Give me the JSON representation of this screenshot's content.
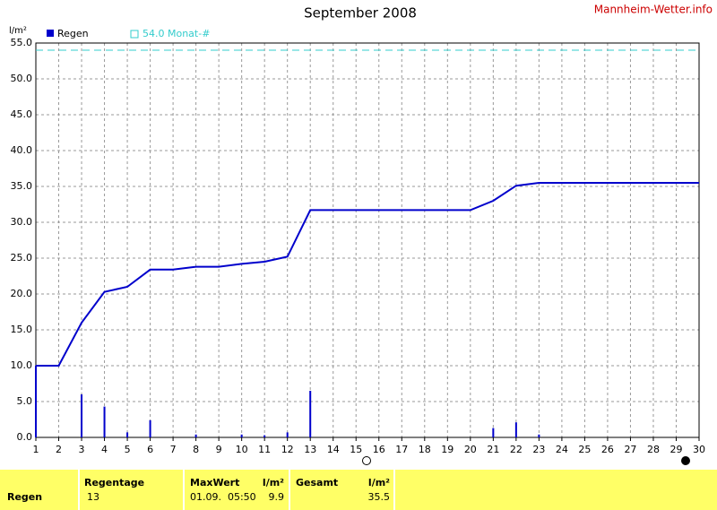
{
  "chart_data": {
    "type": "bar-line",
    "title": "September 2008",
    "brand": "Mannheim-Wetter.info",
    "ylabel": "l/m²",
    "x": [
      1,
      2,
      3,
      4,
      5,
      6,
      7,
      8,
      9,
      10,
      11,
      12,
      13,
      14,
      15,
      16,
      17,
      18,
      19,
      20,
      21,
      22,
      23,
      24,
      25,
      26,
      27,
      28,
      29,
      30
    ],
    "xlim": [
      1,
      30
    ],
    "xticks": [
      1,
      2,
      3,
      4,
      5,
      6,
      7,
      8,
      9,
      10,
      11,
      12,
      13,
      14,
      15,
      16,
      17,
      18,
      19,
      20,
      21,
      22,
      23,
      24,
      25,
      26,
      27,
      28,
      29,
      30
    ],
    "ylim": [
      0,
      55
    ],
    "yticks": [
      {
        "value": 0,
        "label": "0.0"
      },
      {
        "value": 5,
        "label": "5.0"
      },
      {
        "value": 10,
        "label": "10.0"
      },
      {
        "value": 15,
        "label": "15.0"
      },
      {
        "value": 20,
        "label": "20.0"
      },
      {
        "value": 25,
        "label": "25.0"
      },
      {
        "value": 30,
        "label": "30.0"
      },
      {
        "value": 35,
        "label": "35.0"
      },
      {
        "value": 40,
        "label": "40.0"
      },
      {
        "value": 45,
        "label": "45.0"
      },
      {
        "value": 50,
        "label": "50.0"
      },
      {
        "value": 55,
        "label": "55.0"
      }
    ],
    "grid": true,
    "series": [
      {
        "name": "Regen",
        "color": "#0000cc",
        "kind": "bar",
        "values": [
          10.0,
          0,
          6.0,
          4.3,
          0.7,
          2.4,
          0,
          0.4,
          0,
          0.4,
          0.3,
          0.7,
          6.5,
          0,
          0,
          0,
          0,
          0,
          0,
          0,
          1.3,
          2.1,
          0.4,
          0,
          0,
          0,
          0,
          0,
          0,
          0
        ]
      },
      {
        "color": "#0000cc",
        "kind": "line",
        "values": [
          10.0,
          10.0,
          16.0,
          20.3,
          21.0,
          23.4,
          23.4,
          23.8,
          23.8,
          24.2,
          24.5,
          25.2,
          31.7,
          31.7,
          31.7,
          31.7,
          31.7,
          31.7,
          31.7,
          31.7,
          33.0,
          35.1,
          35.5,
          35.5,
          35.5,
          35.5,
          35.5,
          35.5,
          35.5,
          35.5
        ]
      }
    ],
    "reference": {
      "name": "54.0 Monat-#",
      "value": 54.0,
      "color": "#33cccc"
    }
  },
  "table": {
    "row_label": "Regen",
    "headers": [
      "Regentage",
      "MaxWert",
      "l/m²",
      "Gesamt",
      "l/m²"
    ],
    "values": [
      "13",
      "01.09.  05:50",
      "9.9",
      "",
      "35.5"
    ]
  }
}
